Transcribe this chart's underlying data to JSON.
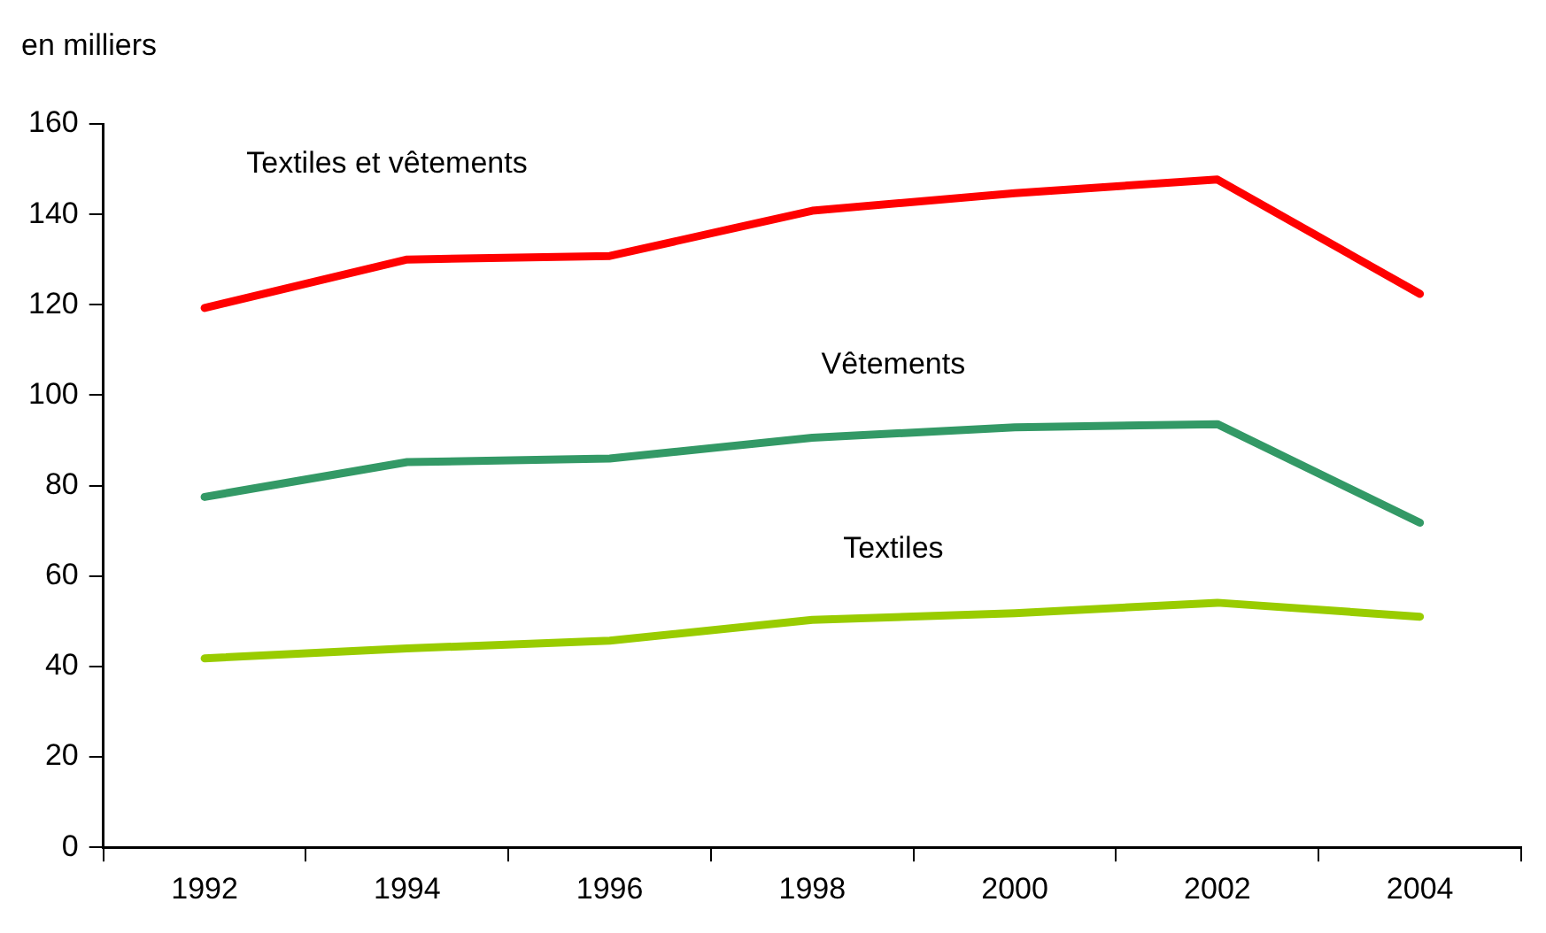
{
  "chart_data": {
    "type": "line",
    "ylabel": "en milliers",
    "categories": [
      "1992",
      "1994",
      "1996",
      "1998",
      "2000",
      "2002",
      "2004"
    ],
    "ylim": [
      0,
      160
    ],
    "yticks": [
      0,
      20,
      40,
      60,
      80,
      100,
      120,
      140,
      160
    ],
    "grid": false,
    "legend": false,
    "marker": "none",
    "line_style": "solid",
    "series": [
      {
        "name": "Textiles et vêtements",
        "color": "#ff0000",
        "values": [
          119.3,
          130,
          130.8,
          140.8,
          144.7,
          147.7,
          122.4
        ]
      },
      {
        "name": "Vêtements",
        "color": "#339966",
        "values": [
          77.5,
          85.2,
          86,
          90.6,
          92.9,
          93.6,
          71.8
        ]
      },
      {
        "name": "Textiles",
        "color": "#99cc00",
        "values": [
          41.8,
          44,
          45.7,
          50.3,
          51.8,
          54.1,
          51
        ]
      }
    ]
  }
}
